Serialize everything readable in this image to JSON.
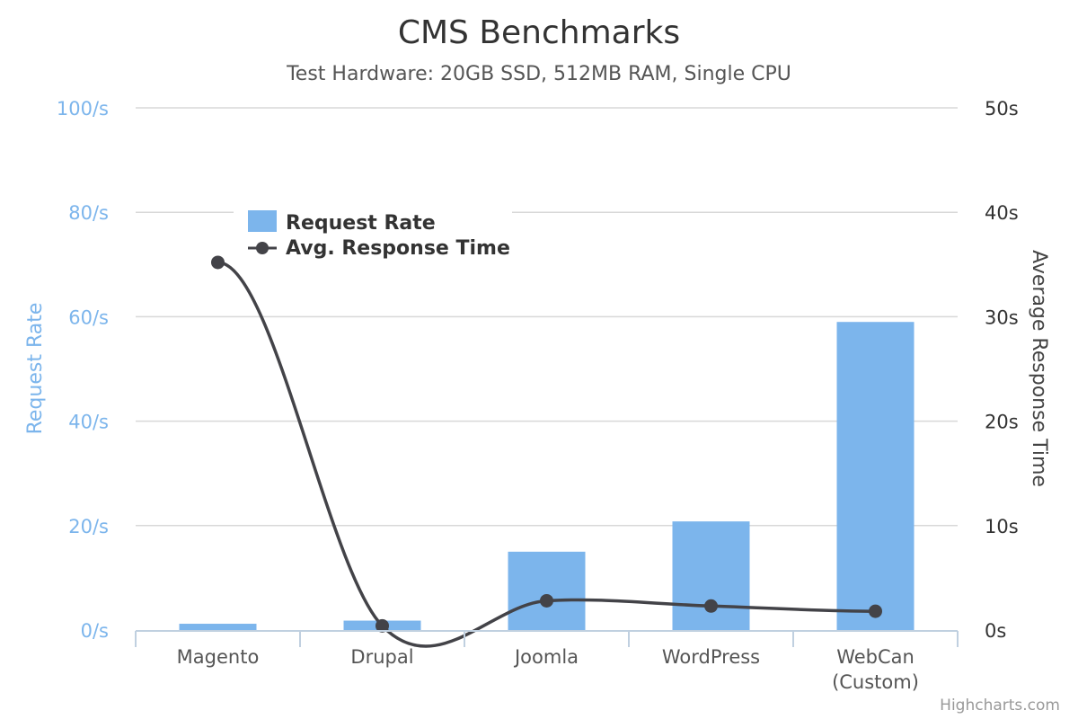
{
  "chart_data": {
    "type": "bar",
    "title": "CMS Benchmarks",
    "subtitle": "Test Hardware: 20GB SSD, 512MB RAM, Single CPU",
    "categories": [
      "Magento",
      "Drupal",
      "Joomla",
      "WordPress",
      "WebCan (Custom)"
    ],
    "series": [
      {
        "name": "Request Rate",
        "type": "column",
        "axis": "left",
        "color": "#7cb5ec",
        "values": [
          1.2,
          1.8,
          15,
          20.8,
          59
        ]
      },
      {
        "name": "Avg. Response Time",
        "type": "spline",
        "axis": "right",
        "color": "#434348",
        "values": [
          35.2,
          0.4,
          2.8,
          2.3,
          1.8
        ]
      }
    ],
    "y_left": {
      "title": "Request Rate",
      "ylim": [
        0,
        100
      ],
      "ticks": [
        0,
        20,
        40,
        60,
        80,
        100
      ],
      "tick_labels": [
        "0/s",
        "20/s",
        "40/s",
        "60/s",
        "80/s",
        "100/s"
      ]
    },
    "y_right": {
      "title": "Average Response Time",
      "ylim": [
        0,
        50
      ],
      "ticks": [
        0,
        10,
        20,
        30,
        40,
        50
      ],
      "tick_labels": [
        "0s",
        "10s",
        "20s",
        "30s",
        "40s",
        "50s"
      ]
    },
    "x_tick_labels": [
      [
        "Magento"
      ],
      [
        "Drupal"
      ],
      [
        "Joomla"
      ],
      [
        "WordPress"
      ],
      [
        "WebCan",
        "(Custom)"
      ]
    ],
    "legend": {
      "position": "top-left",
      "floating": true
    },
    "grid": true
  },
  "credits": "Highcharts.com"
}
